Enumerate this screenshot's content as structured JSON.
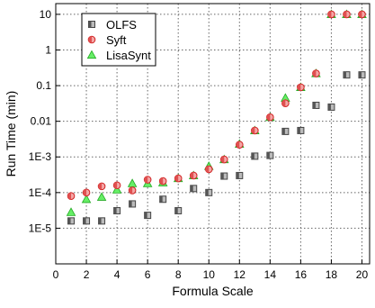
{
  "chart_data": {
    "type": "scatter",
    "xlabel": "Formula Scale",
    "ylabel": "Run Time (min)",
    "xlim": [
      0,
      20.5
    ],
    "ylim": [
      1e-06,
      20
    ],
    "x_scale": "linear",
    "y_scale": "log",
    "x_ticks": [
      0,
      2,
      4,
      6,
      8,
      10,
      12,
      14,
      16,
      18,
      20
    ],
    "y_ticks": [
      {
        "value": 1e-05,
        "label": "1E-5"
      },
      {
        "value": 0.0001,
        "label": "1E-4"
      },
      {
        "value": 0.001,
        "label": "1E-3"
      },
      {
        "value": 0.01,
        "label": "0.01"
      },
      {
        "value": 0.1,
        "label": "0.1"
      },
      {
        "value": 1,
        "label": "1"
      },
      {
        "value": 10,
        "label": "10"
      }
    ],
    "grid": true,
    "legend_position": "top-left",
    "series": [
      {
        "name": "OLFS",
        "marker": "square",
        "color": "#555555",
        "points": [
          [
            1,
            1.6e-05
          ],
          [
            2,
            1.6e-05
          ],
          [
            3,
            1.6e-05
          ],
          [
            4,
            3.1e-05
          ],
          [
            5,
            4.8e-05
          ],
          [
            6,
            2.3e-05
          ],
          [
            7,
            6.5e-05
          ],
          [
            8,
            3.1e-05
          ],
          [
            9,
            0.00013
          ],
          [
            10,
            0.0001
          ],
          [
            11,
            0.00029
          ],
          [
            12,
            0.0003
          ],
          [
            13,
            0.00105
          ],
          [
            14,
            0.0011
          ],
          [
            15,
            0.0052
          ],
          [
            16,
            0.0055
          ],
          [
            17,
            0.028
          ],
          [
            18,
            0.025
          ],
          [
            19,
            0.2
          ],
          [
            20,
            0.2
          ]
        ]
      },
      {
        "name": "Syft",
        "marker": "circle",
        "color": "#e03030",
        "points": [
          [
            1,
            8e-05
          ],
          [
            2,
            0.0001
          ],
          [
            3,
            0.00015
          ],
          [
            4,
            0.00016
          ],
          [
            5,
            0.000115
          ],
          [
            6,
            0.00023
          ],
          [
            7,
            0.00021
          ],
          [
            8,
            0.00025
          ],
          [
            9,
            0.0003
          ],
          [
            10,
            0.00045
          ],
          [
            11,
            0.00085
          ],
          [
            12,
            0.0022
          ],
          [
            13,
            0.0055
          ],
          [
            14,
            0.013
          ],
          [
            15,
            0.032
          ],
          [
            16,
            0.09
          ],
          [
            17,
            0.22
          ],
          [
            18,
            10
          ],
          [
            19,
            10
          ],
          [
            20,
            10
          ]
        ]
      },
      {
        "name": "LisaSynt",
        "marker": "triangle",
        "color": "#33cc33",
        "points": [
          [
            1,
            2.8e-05
          ],
          [
            2,
            6.5e-05
          ],
          [
            3,
            7.5e-05
          ],
          [
            4,
            0.00012
          ],
          [
            5,
            0.00018
          ],
          [
            6,
            0.00018
          ],
          [
            7,
            0.00019
          ],
          [
            8,
            0.00025
          ],
          [
            9,
            0.0003
          ],
          [
            10,
            0.00055
          ],
          [
            11,
            0.00085
          ],
          [
            12,
            0.0023
          ],
          [
            13,
            0.0055
          ],
          [
            14,
            0.013
          ],
          [
            15,
            0.045
          ],
          [
            16,
            0.09
          ],
          [
            17,
            0.22
          ],
          [
            18,
            10
          ],
          [
            19,
            10
          ],
          [
            20,
            10
          ]
        ]
      }
    ]
  }
}
